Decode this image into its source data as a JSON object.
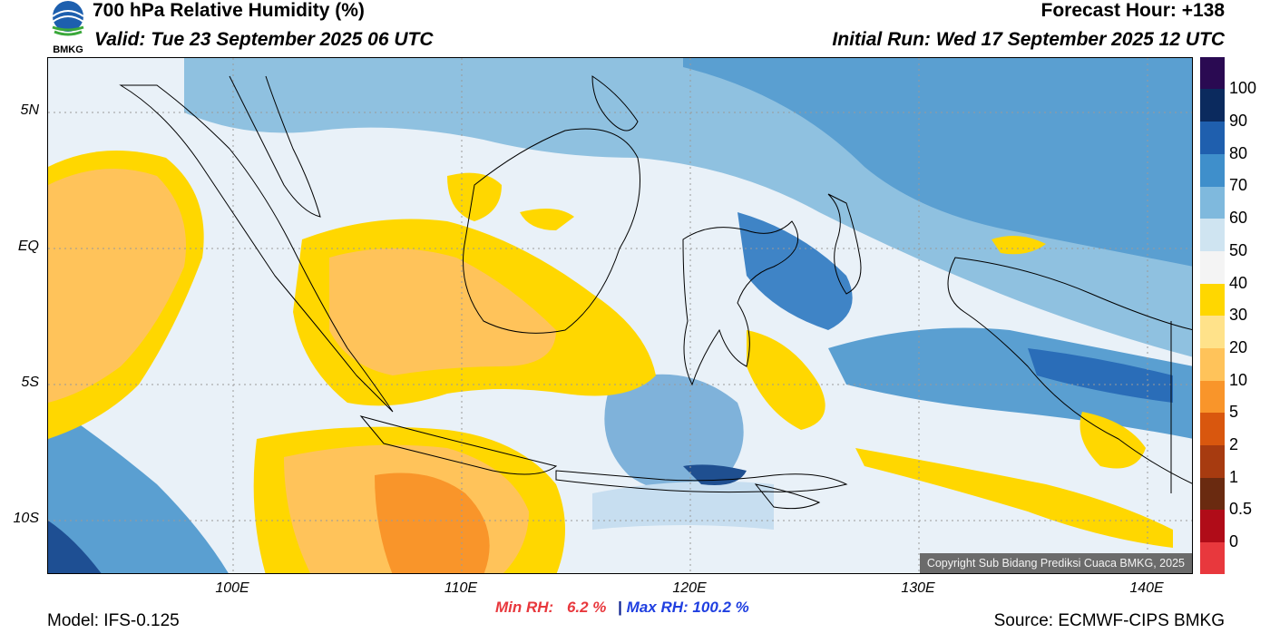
{
  "header": {
    "title": "700 hPa Relative Humidity (%)",
    "valid": "Valid: Tue 23 September 2025 06 UTC",
    "forecast_hour": "Forecast Hour: +138",
    "initial_run": "Initial Run: Wed 17 September 2025 12 UTC",
    "logo_text": "BMKG"
  },
  "map": {
    "lat_labels": [
      "5N",
      "EQ",
      "5S",
      "10S"
    ],
    "lon_labels": [
      "100E",
      "110E",
      "120E",
      "130E",
      "140E"
    ],
    "copyright": "Copyright Sub Bidang Prediksi Cuaca BMKG, 2025"
  },
  "colorbar": {
    "labels": [
      "100",
      "90",
      "80",
      "70",
      "60",
      "50",
      "40",
      "30",
      "20",
      "10",
      "5",
      "2",
      "1",
      "0.5",
      "0"
    ],
    "colors": [
      "#2a0a52",
      "#0b2a5e",
      "#1f5fae",
      "#3f8fcb",
      "#7fb9dd",
      "#cfe4f1",
      "#f4f4f4",
      "#ffd700",
      "#ffe28a",
      "#ffc35a",
      "#f9952a",
      "#d9570e",
      "#a73b10",
      "#6a2a10",
      "#b00c18",
      "#e8383d"
    ]
  },
  "footer": {
    "model": "Model: IFS-0.125",
    "min_label": "Min RH:",
    "min_value": "6.2 %",
    "separator": "|",
    "max_label": "Max RH:",
    "max_value": "100.2 %",
    "source": "Source: ECMWF-CIPS BMKG"
  }
}
